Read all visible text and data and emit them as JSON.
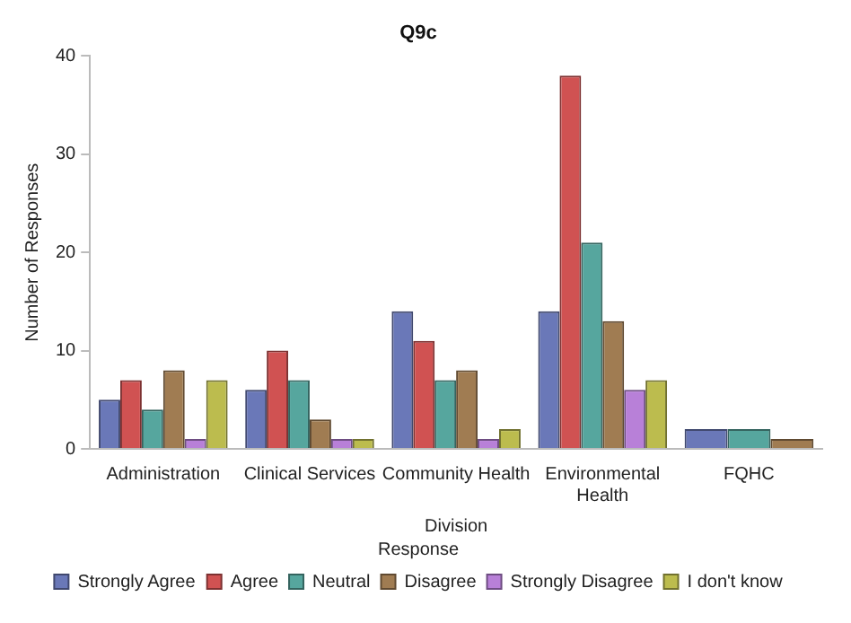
{
  "chart_data": {
    "type": "bar",
    "title": "Q9c",
    "xlabel": "Division",
    "ylabel": "Number of Responses",
    "legend_title": "Response",
    "categories": [
      "Administration",
      "Clinical Services",
      "Community Health",
      "Environmental Health",
      "FQHC"
    ],
    "series": [
      {
        "name": "Strongly Agree",
        "color": "#6a78b8",
        "values": [
          5,
          6,
          14,
          14,
          2
        ]
      },
      {
        "name": "Agree",
        "color": "#d05252",
        "values": [
          7,
          10,
          11,
          38,
          null
        ]
      },
      {
        "name": "Neutral",
        "color": "#56a69e",
        "values": [
          4,
          7,
          7,
          21,
          2
        ]
      },
      {
        "name": "Disagree",
        "color": "#a07c52",
        "values": [
          8,
          3,
          8,
          13,
          1
        ]
      },
      {
        "name": "Strongly Disagree",
        "color": "#b880d8",
        "values": [
          1,
          1,
          1,
          6,
          null
        ]
      },
      {
        "name": "I don't know",
        "color": "#bcbc4e",
        "values": [
          7,
          1,
          2,
          7,
          null
        ]
      }
    ],
    "ylim": [
      0,
      40
    ],
    "yticks": [
      0,
      10,
      20,
      30,
      40
    ],
    "grid": false,
    "legend": "bottom"
  }
}
